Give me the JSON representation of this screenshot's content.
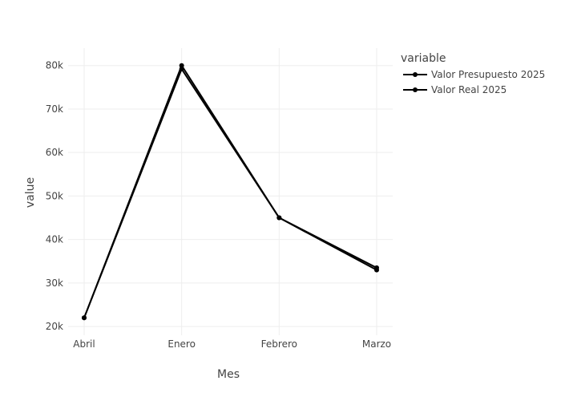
{
  "chart_data": {
    "type": "line",
    "title": "",
    "xlabel": "Mes",
    "ylabel": "value",
    "categories": [
      "Abril",
      "Enero",
      "Febrero",
      "Marzo"
    ],
    "ylim": [
      18000,
      84000
    ],
    "yticks": [
      20000,
      30000,
      40000,
      50000,
      60000,
      70000,
      80000
    ],
    "ytick_labels": [
      "20k",
      "30k",
      "40k",
      "50k",
      "60k",
      "70k",
      "80k"
    ],
    "grid": true,
    "legend": {
      "title": "variable",
      "placement": "top-right"
    },
    "series": [
      {
        "name": "Valor Presupuesto 2025",
        "color": "#000000",
        "values": [
          22000,
          80000,
          45000,
          33500
        ]
      },
      {
        "name": "Valor Real 2025",
        "color": "#000000",
        "values": [
          22000,
          79200,
          45000,
          33000
        ]
      }
    ]
  }
}
